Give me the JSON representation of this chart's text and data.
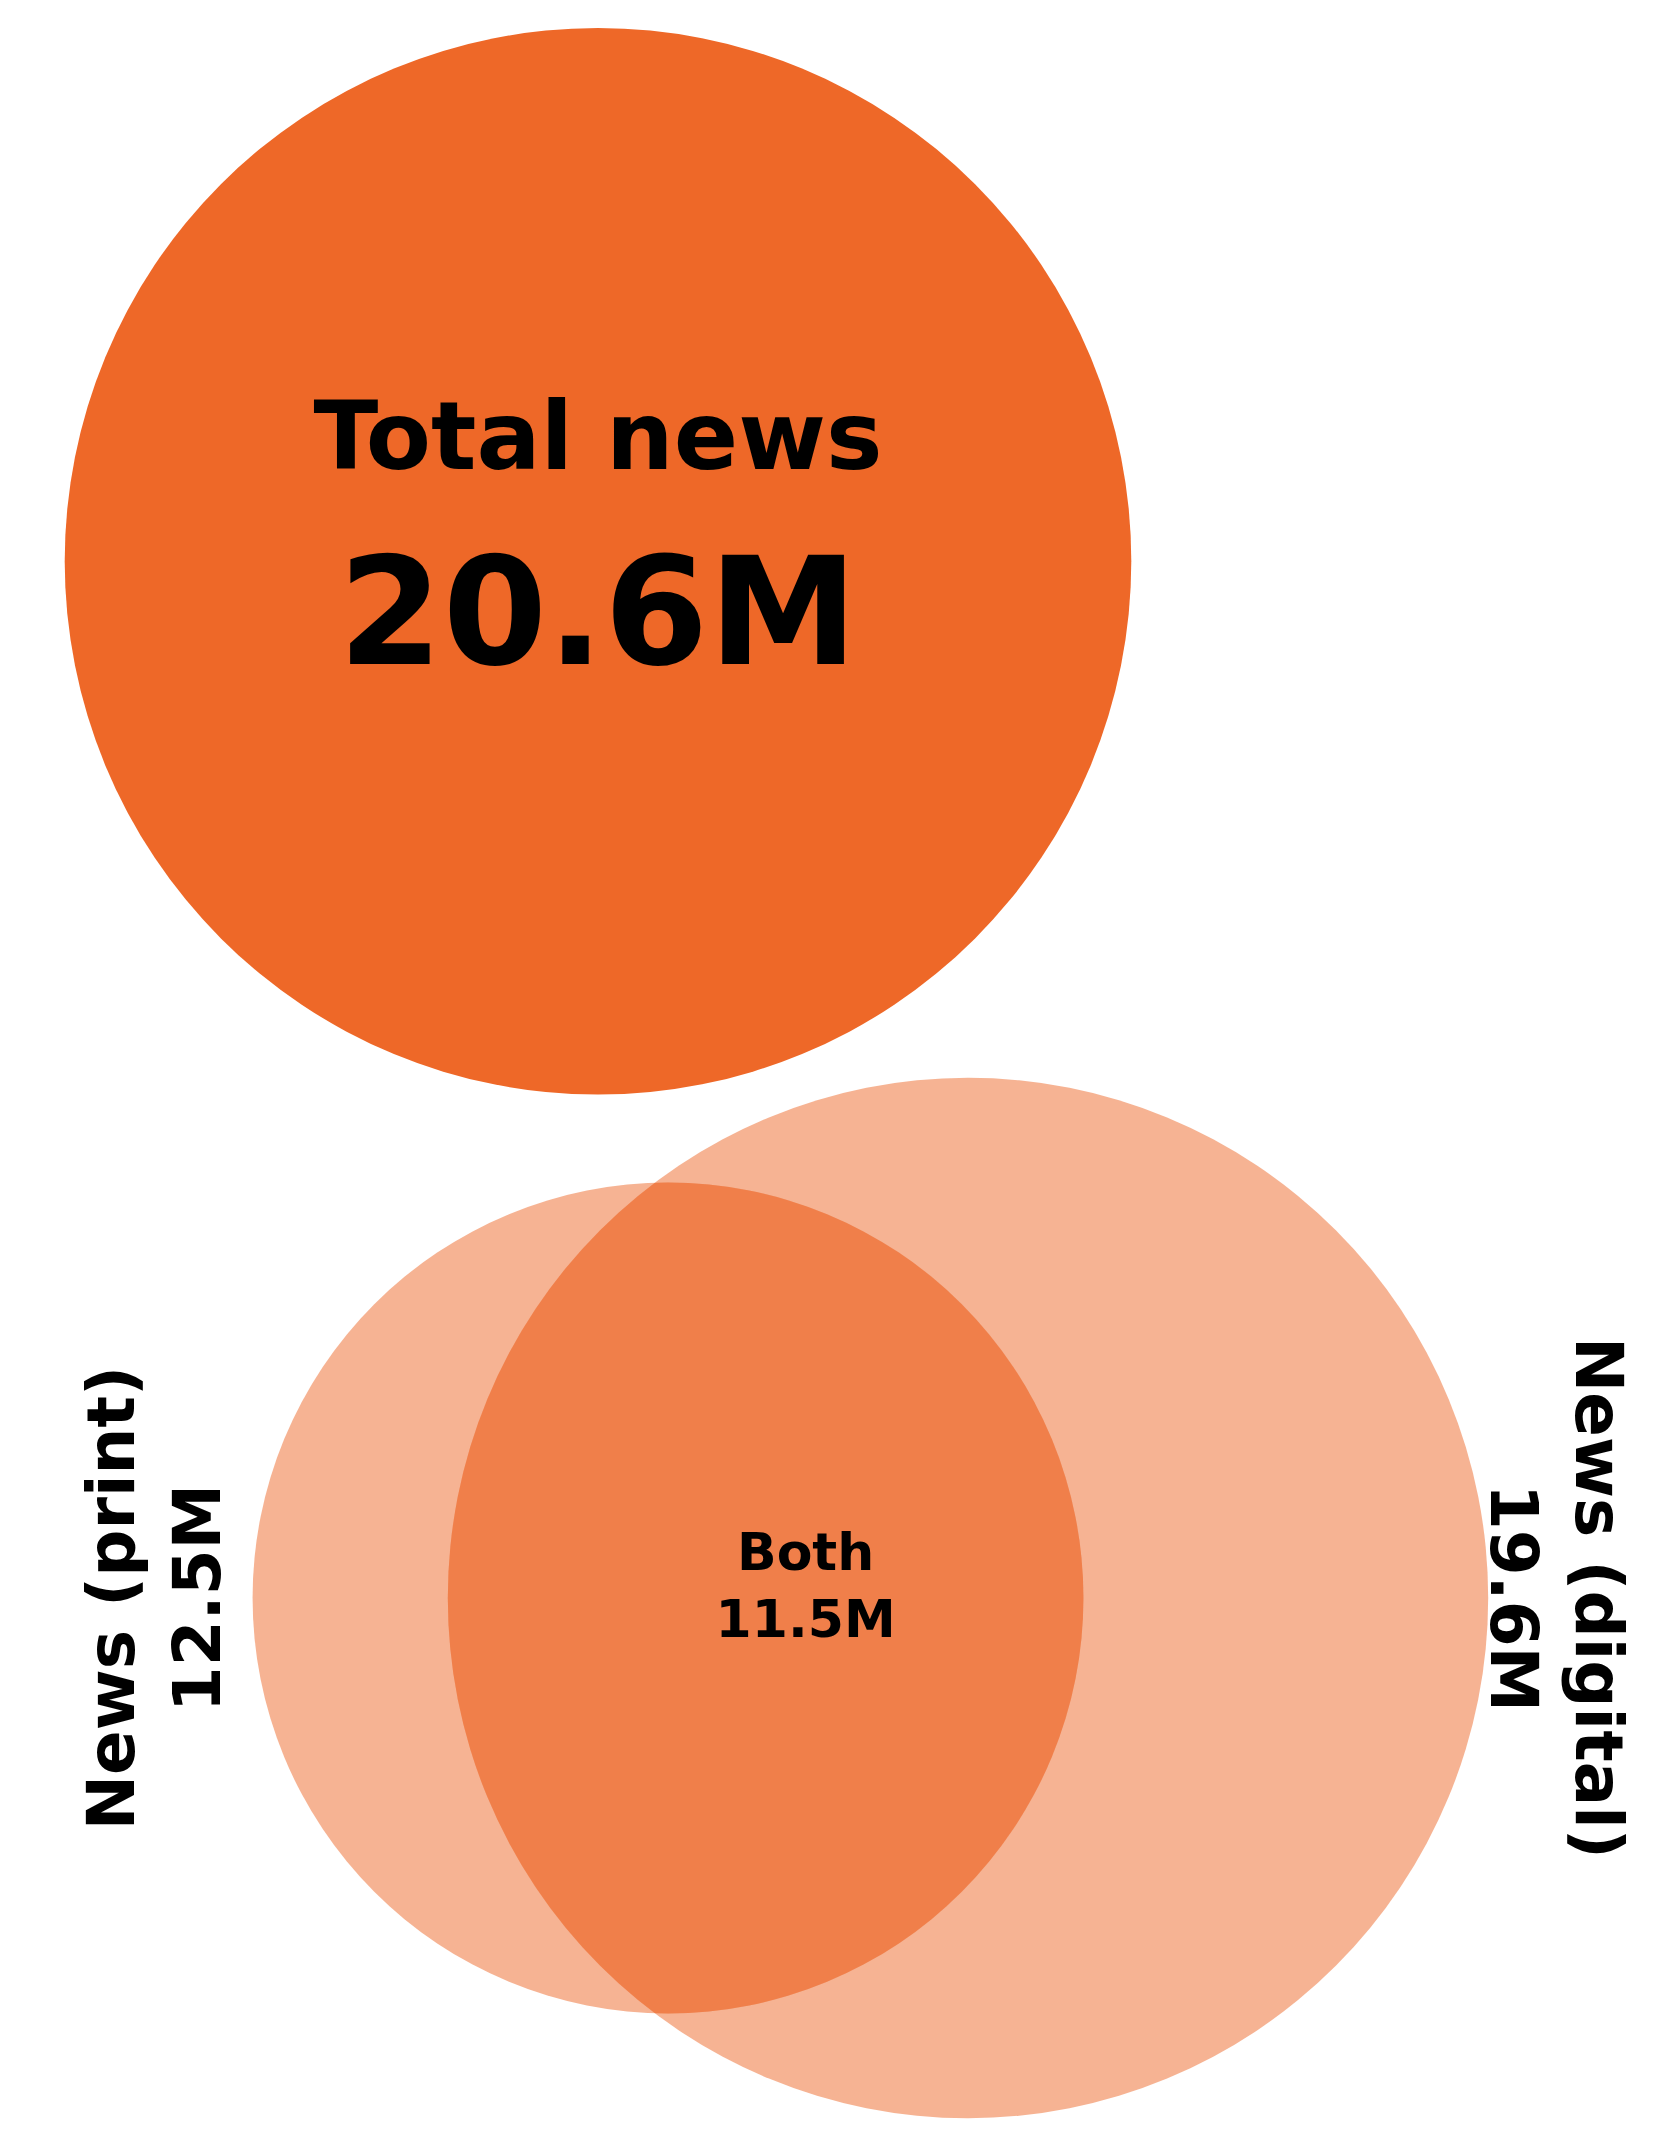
{
  "chart_data": {
    "type": "other",
    "categories": [
      "Total news",
      "News (print)",
      "News (digital)",
      "Both"
    ],
    "values": [
      20.6,
      12.5,
      19.6,
      11.5
    ],
    "value_labels": [
      "20.6M",
      "12.5M",
      "19.6M",
      "11.5M"
    ],
    "colors": [
      "#ee6828",
      "#ee6828",
      "#ee6828",
      "#ee6828"
    ]
  }
}
